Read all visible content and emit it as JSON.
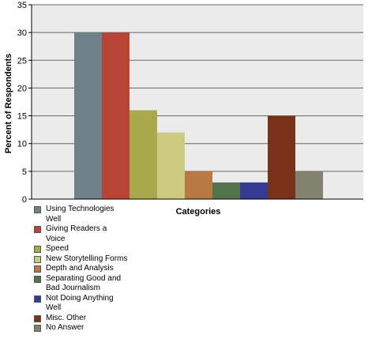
{
  "chart_data": {
    "type": "bar",
    "title": "",
    "xlabel": "Categories",
    "ylabel": "Percent of Respondents",
    "ylim": [
      0,
      35
    ],
    "yticks": [
      0,
      5,
      10,
      15,
      20,
      25,
      30,
      35
    ],
    "grid": true,
    "legend_position": "bottom-left",
    "categories": [
      "Using Technologies Well",
      "Giving Readers a Voice",
      "Speed",
      "New Storytelling Forms",
      "Depth and Analysis",
      "Separating Good and Bad Journalism",
      "Not Doing Anything Well",
      "Misc. Other",
      "No Answer"
    ],
    "values": [
      30,
      30,
      16,
      12,
      5,
      3,
      3,
      15,
      5
    ],
    "colors": [
      "#6e8088",
      "#b84435",
      "#a9a84a",
      "#cccb80",
      "#b87945",
      "#51744a",
      "#353a92",
      "#773219",
      "#838270"
    ]
  },
  "legend": {
    "items": [
      {
        "label": "Using Technologies Well",
        "color": "#6e8088"
      },
      {
        "label": "Giving Readers a Voice",
        "color": "#b84435"
      },
      {
        "label": "Speed",
        "color": "#a9a84a"
      },
      {
        "label": "New Storytelling Forms",
        "color": "#cccb80"
      },
      {
        "label": "Depth and Analysis",
        "color": "#b87945"
      },
      {
        "label": "Separating Good and Bad Journalism",
        "color": "#51744a"
      },
      {
        "label": "Not Doing Anything Well",
        "color": "#353a92"
      },
      {
        "label": "Misc. Other",
        "color": "#773219"
      },
      {
        "label": "No Answer",
        "color": "#838270"
      }
    ]
  },
  "colors": {
    "plot_background": "#ebebeb",
    "grid": "#666666",
    "axis": "#000000"
  }
}
